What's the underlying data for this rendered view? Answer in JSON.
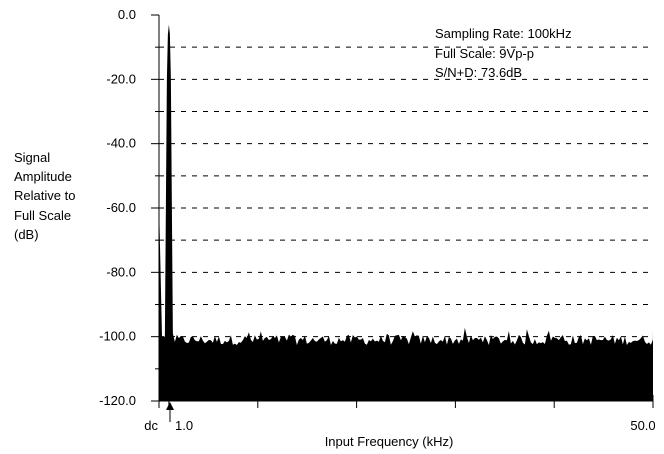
{
  "chart_data": {
    "type": "area",
    "title": "",
    "xlabel": "Input Frequency (kHz)",
    "ylabel": [
      "Signal",
      "Amplitude",
      "Relative to",
      "Full Scale",
      "(dB)"
    ],
    "xlim": [
      0,
      50
    ],
    "ylim": [
      -120,
      0
    ],
    "yticks": [
      0,
      -20,
      -40,
      -60,
      -80,
      -100,
      -120
    ],
    "ytick_labels": [
      "0.0",
      "-20.0",
      "-40.0",
      "-60.0",
      "-80.0",
      "-100.0",
      "-120.0"
    ],
    "xtick_labels": [
      {
        "x": 0,
        "label": "dc"
      },
      {
        "x": 1,
        "label": "1.0"
      },
      {
        "x": 50,
        "label": "50.0"
      }
    ],
    "xticks_minor": [
      0,
      1,
      10,
      20,
      30,
      40,
      50
    ],
    "grid": "dashed horizontal every 10 dB",
    "annotations": [
      "Sampling Rate:  100kHz",
      "Full Scale:  9Vp-p",
      "S/N+D:  73.6dB"
    ],
    "series": [
      {
        "fundamental_khz": 1.0,
        "fundamental_db": -3,
        "noise_floor_db": -101,
        "dc_peak_db": -58
      }
    ]
  },
  "colors": {
    "fill": "#000000",
    "background": "#ffffff"
  }
}
